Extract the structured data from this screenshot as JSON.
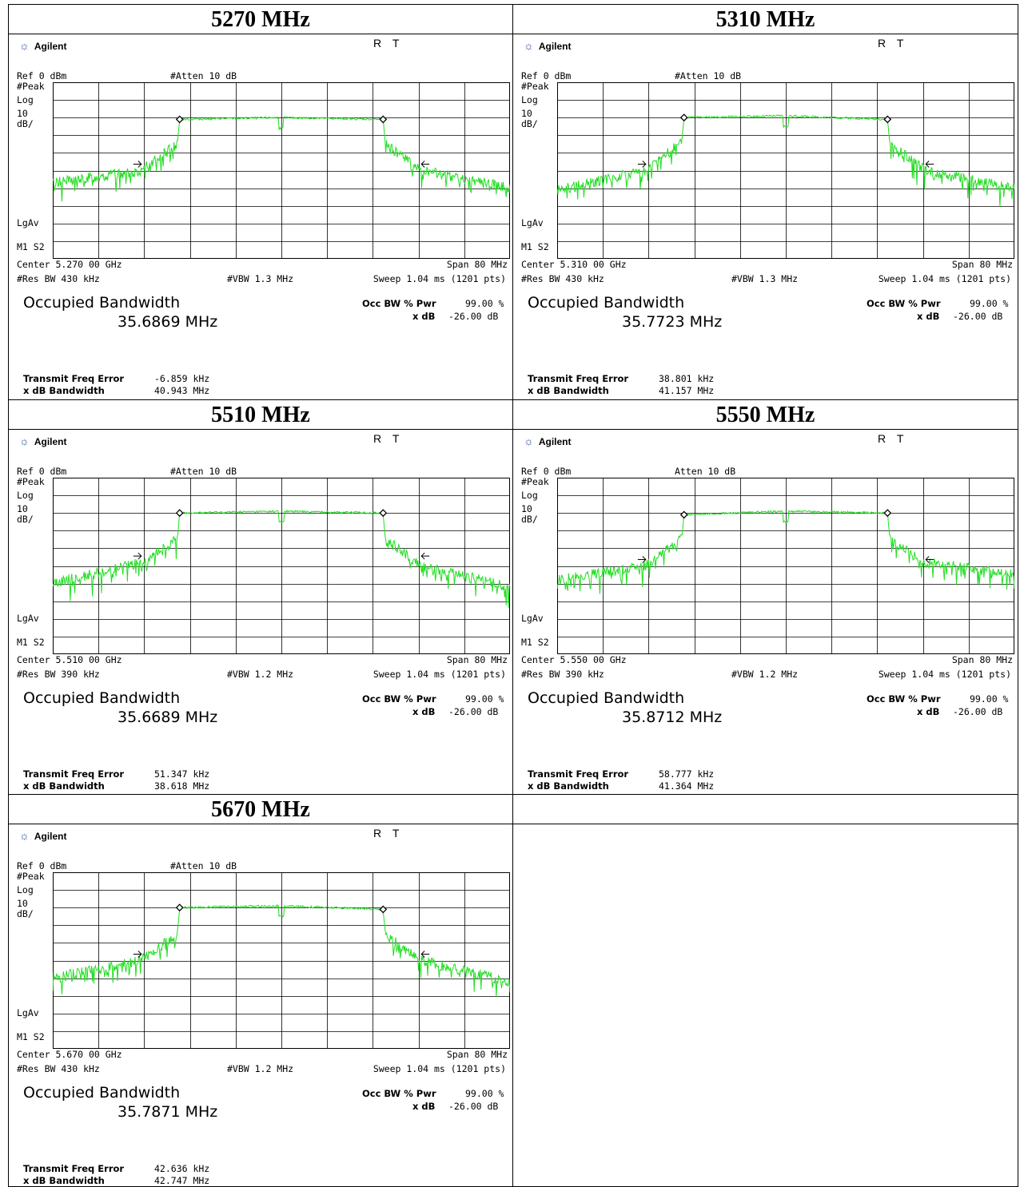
{
  "analyzer_common": {
    "logo_text": "Agilent",
    "indicator": "RT",
    "ref_label": "Ref 0 dBm",
    "scale_lines": [
      "#Peak",
      "Log",
      "10",
      "dB/"
    ],
    "lgav_label": "LgAv",
    "marker_label": "M1 S2",
    "span_label": "Span 80 MHz",
    "sweep_label": "Sweep 1.04 ms (1201 pts)",
    "occ_title": "Occupied Bandwidth",
    "occ_pwr_label": "Occ BW % Pwr",
    "occ_pwr_value": "99.00 %",
    "xdb_label": "x dB",
    "xdb_value": "-26.00 dB",
    "tfe_label": "Transmit Freq Error",
    "xdb_bw_label": "x dB Bandwidth",
    "trace_color": "#22dd22"
  },
  "panels": [
    {
      "title": "5270 MHz",
      "atten": "#Atten 10 dB",
      "center": "Center 5.270 00 GHz",
      "res_bw": "#Res BW 430 kHz",
      "vbw": "#VBW 1.3 MHz",
      "occ_bw_value": "35.6869 MHz",
      "tfe_value": "-6.859 kHz",
      "xdb_bw_value": "40.943 MHz"
    },
    {
      "title": "5310 MHz",
      "atten": "#Atten 10 dB",
      "center": "Center 5.310 00 GHz",
      "res_bw": "#Res BW 430 kHz",
      "vbw": "#VBW 1.3 MHz",
      "occ_bw_value": "35.7723 MHz",
      "tfe_value": "38.801 kHz",
      "xdb_bw_value": "41.157 MHz"
    },
    {
      "title": "5510 MHz",
      "atten": "#Atten 10 dB",
      "center": "Center 5.510 00 GHz",
      "res_bw": "#Res BW 390 kHz",
      "vbw": "#VBW 1.2 MHz",
      "occ_bw_value": "35.6689 MHz",
      "tfe_value": "51.347 kHz",
      "xdb_bw_value": "38.618 MHz"
    },
    {
      "title": "5550 MHz",
      "atten": "Atten 10 dB",
      "center": "Center 5.550 00 GHz",
      "res_bw": "#Res BW 390 kHz",
      "vbw": "#VBW 1.2 MHz",
      "occ_bw_value": "35.8712 MHz",
      "tfe_value": "58.777 kHz",
      "xdb_bw_value": "41.364 MHz"
    },
    {
      "title": "5670 MHz",
      "atten": "#Atten 10 dB",
      "center": "Center 5.670 00 GHz",
      "res_bw": "#Res BW 430 kHz",
      "vbw": "#VBW 1.2 MHz",
      "occ_bw_value": "35.7871 MHz",
      "tfe_value": "42.636 kHz",
      "xdb_bw_value": "42.747 MHz"
    }
  ],
  "chart_data": [
    {
      "type": "line",
      "title": "5270 MHz",
      "x_range": [
        5.23,
        5.31
      ],
      "ylim": [
        -100,
        0
      ],
      "series": [
        {
          "x": [
            5.23,
            5.2455,
            5.2518,
            5.2522,
            5.27,
            5.2878,
            5.2882,
            5.2945,
            5.31
          ],
          "values": [
            -57,
            -50,
            -35,
            -21,
            -20,
            -21,
            -35,
            -50,
            -60
          ]
        }
      ]
    },
    {
      "type": "line",
      "title": "5310 MHz",
      "x_range": [
        5.27,
        5.35
      ],
      "ylim": [
        -100,
        0
      ],
      "series": [
        {
          "x": [
            5.27,
            5.2855,
            5.2918,
            5.2922,
            5.31,
            5.3278,
            5.3282,
            5.3345,
            5.35
          ],
          "values": [
            -61,
            -50,
            -34,
            -20,
            -19,
            -21,
            -35,
            -50,
            -60
          ]
        }
      ]
    },
    {
      "type": "line",
      "title": "5510 MHz",
      "x_range": [
        5.47,
        5.55
      ],
      "ylim": [
        -100,
        0
      ],
      "series": [
        {
          "x": [
            5.47,
            5.4855,
            5.4918,
            5.4922,
            5.51,
            5.5278,
            5.5282,
            5.5345,
            5.55
          ],
          "values": [
            -60,
            -48,
            -35,
            -20,
            -19,
            -20,
            -35,
            -50,
            -62
          ]
        }
      ]
    },
    {
      "type": "line",
      "title": "5550 MHz",
      "x_range": [
        5.51,
        5.59
      ],
      "ylim": [
        -100,
        0
      ],
      "series": [
        {
          "x": [
            5.51,
            5.5255,
            5.5318,
            5.5322,
            5.55,
            5.5678,
            5.5682,
            5.5745,
            5.59
          ],
          "values": [
            -58,
            -50,
            -34,
            -21,
            -19,
            -20,
            -35,
            -48,
            -55
          ]
        }
      ]
    },
    {
      "type": "line",
      "title": "5670 MHz",
      "x_range": [
        5.63,
        5.71
      ],
      "ylim": [
        -100,
        0
      ],
      "series": [
        {
          "x": [
            5.63,
            5.6455,
            5.6518,
            5.6522,
            5.67,
            5.6878,
            5.6882,
            5.6945,
            5.71
          ],
          "values": [
            -60,
            -50,
            -35,
            -20,
            -19,
            -21,
            -35,
            -50,
            -62
          ]
        }
      ]
    }
  ]
}
